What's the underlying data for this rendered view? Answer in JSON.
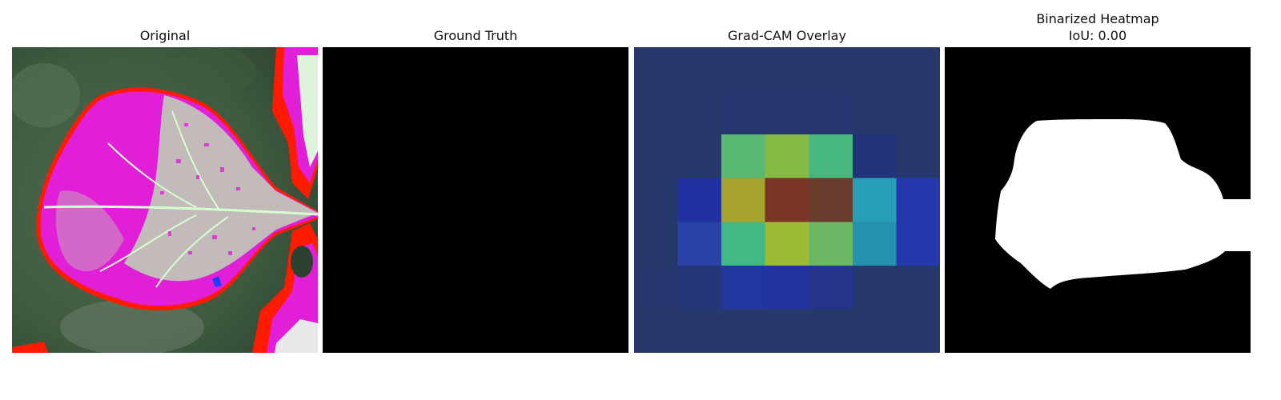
{
  "panels": {
    "original": {
      "title": "Original",
      "image": "leaf with magenta false-color diseased region on green background"
    },
    "ground_truth": {
      "title": "Ground Truth",
      "image": "all-black ground truth mask"
    },
    "gradcam": {
      "title": "Grad-CAM Overlay",
      "image": "Grad-CAM heatmap overlay with peak activation near center"
    },
    "binarized": {
      "title_line1": "Binarized Heatmap",
      "title_line2": "IoU: 0.00",
      "image": "binarized heatmap showing white blob on black background"
    }
  },
  "colors": {
    "magenta": "#e21fd8",
    "leaf_vein": "#b7f0b0",
    "red_edge": "#ff1a00",
    "overlay_base": "#27386b",
    "mask_black": "#000000",
    "mask_white": "#ffffff"
  }
}
